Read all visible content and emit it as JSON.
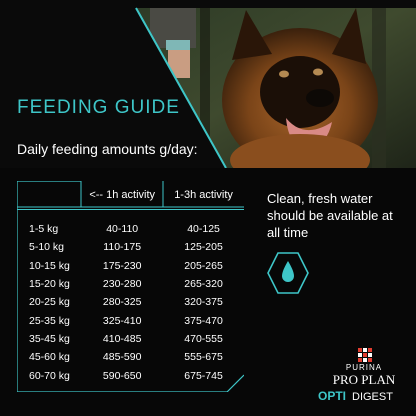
{
  "title": "FEEDING GUIDE",
  "subtitle": "Daily feeding amounts g/day:",
  "table": {
    "headers": [
      "",
      "<-- 1h activity",
      "1-3h activity"
    ],
    "rows": [
      {
        "weight": "1-5 kg",
        "low": "40-110",
        "high": "40-125"
      },
      {
        "weight": "5-10 kg",
        "low": "110-175",
        "high": "125-205"
      },
      {
        "weight": "10-15 kg",
        "low": "175-230",
        "high": "205-265"
      },
      {
        "weight": "15-20 kg",
        "low": "230-280",
        "high": "265-320"
      },
      {
        "weight": "20-25 kg",
        "low": "280-325",
        "high": "320-375"
      },
      {
        "weight": "25-35 kg",
        "low": "325-410",
        "high": "375-470"
      },
      {
        "weight": "35-45 kg",
        "low": "410-485",
        "high": "470-555"
      },
      {
        "weight": "45-60 kg",
        "low": "485-590",
        "high": "555-675"
      },
      {
        "weight": "60-70 kg",
        "low": "590-650",
        "high": "675-745"
      }
    ]
  },
  "water_note": "Clean, fresh water should be available at all time",
  "icons": {
    "water": "water-drop-icon"
  },
  "brand": {
    "maker": "PURINA",
    "line": "PRO PLAN",
    "sub_a": "OPTI",
    "sub_b": "DIGEST"
  },
  "colors": {
    "accent": "#3ec6c8",
    "background": "#070707",
    "text": "#ffffff"
  }
}
